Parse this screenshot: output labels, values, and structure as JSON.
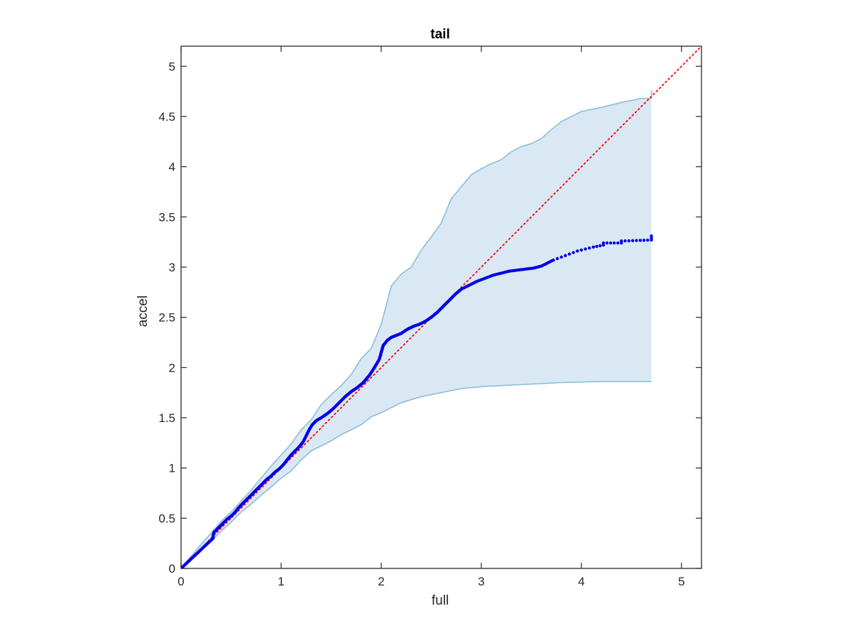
{
  "chart_data": {
    "type": "scatter",
    "title": "tail",
    "xlabel": "full",
    "ylabel": "accel",
    "xlim": [
      0,
      5.2
    ],
    "ylim": [
      0,
      5.2
    ],
    "xticks": [
      "0",
      "1",
      "2",
      "3",
      "4",
      "5"
    ],
    "yticks": [
      "0",
      "0.5",
      "1",
      "1.5",
      "2",
      "2.5",
      "3",
      "3.5",
      "4",
      "4.5",
      "5"
    ],
    "grid": false,
    "box": true,
    "colors": {
      "points": "#0000e6",
      "band_fill": "#d9e8f3",
      "band_edge": "#8dbddb",
      "reference_line": "#ff0000"
    },
    "reference_line": {
      "style": "dotted",
      "from": [
        0,
        0
      ],
      "to": [
        5.2,
        5.2
      ]
    },
    "band": {
      "upper": [
        [
          0,
          0
        ],
        [
          0.1,
          0.12
        ],
        [
          0.2,
          0.24
        ],
        [
          0.3,
          0.35
        ],
        [
          0.4,
          0.47
        ],
        [
          0.5,
          0.56
        ],
        [
          0.6,
          0.67
        ],
        [
          0.7,
          0.78
        ],
        [
          0.8,
          0.9
        ],
        [
          0.9,
          1.02
        ],
        [
          1.0,
          1.13
        ],
        [
          1.1,
          1.24
        ],
        [
          1.2,
          1.38
        ],
        [
          1.3,
          1.48
        ],
        [
          1.4,
          1.63
        ],
        [
          1.5,
          1.73
        ],
        [
          1.6,
          1.82
        ],
        [
          1.7,
          1.93
        ],
        [
          1.8,
          2.09
        ],
        [
          1.9,
          2.19
        ],
        [
          2.0,
          2.43
        ],
        [
          2.05,
          2.62
        ],
        [
          2.1,
          2.81
        ],
        [
          2.2,
          2.93
        ],
        [
          2.3,
          3.0
        ],
        [
          2.4,
          3.17
        ],
        [
          2.5,
          3.3
        ],
        [
          2.6,
          3.44
        ],
        [
          2.7,
          3.68
        ],
        [
          2.8,
          3.8
        ],
        [
          2.9,
          3.92
        ],
        [
          3.0,
          3.98
        ],
        [
          3.1,
          4.03
        ],
        [
          3.2,
          4.07
        ],
        [
          3.3,
          4.15
        ],
        [
          3.4,
          4.2
        ],
        [
          3.5,
          4.23
        ],
        [
          3.6,
          4.28
        ],
        [
          3.7,
          4.37
        ],
        [
          3.8,
          4.45
        ],
        [
          3.9,
          4.5
        ],
        [
          4.0,
          4.55
        ],
        [
          4.2,
          4.59
        ],
        [
          4.4,
          4.64
        ],
        [
          4.6,
          4.68
        ],
        [
          4.7,
          4.68
        ],
        [
          4.7,
          4.76
        ]
      ],
      "lower": [
        [
          0,
          0
        ],
        [
          0.3,
          0.27
        ],
        [
          0.4,
          0.37
        ],
        [
          0.5,
          0.46
        ],
        [
          0.6,
          0.56
        ],
        [
          0.7,
          0.64
        ],
        [
          0.8,
          0.73
        ],
        [
          0.9,
          0.81
        ],
        [
          1.0,
          0.9
        ],
        [
          1.1,
          0.97
        ],
        [
          1.2,
          1.08
        ],
        [
          1.3,
          1.17
        ],
        [
          1.4,
          1.22
        ],
        [
          1.5,
          1.27
        ],
        [
          1.6,
          1.33
        ],
        [
          1.7,
          1.38
        ],
        [
          1.8,
          1.43
        ],
        [
          1.9,
          1.51
        ],
        [
          2.0,
          1.55
        ],
        [
          2.1,
          1.6
        ],
        [
          2.2,
          1.65
        ],
        [
          2.4,
          1.71
        ],
        [
          2.6,
          1.75
        ],
        [
          2.8,
          1.79
        ],
        [
          3.0,
          1.81
        ],
        [
          3.4,
          1.83
        ],
        [
          3.8,
          1.85
        ],
        [
          4.2,
          1.86
        ],
        [
          4.7,
          1.86
        ]
      ]
    },
    "points": [
      [
        0,
        0
      ],
      [
        0.32,
        0.3
      ],
      [
        0.32,
        0.33
      ],
      [
        0.33,
        0.36
      ],
      [
        0.35,
        0.38
      ],
      [
        0.38,
        0.41
      ],
      [
        0.42,
        0.45
      ],
      [
        0.46,
        0.49
      ],
      [
        0.5,
        0.52
      ],
      [
        0.54,
        0.56
      ],
      [
        0.58,
        0.61
      ],
      [
        0.62,
        0.65
      ],
      [
        0.66,
        0.69
      ],
      [
        0.7,
        0.73
      ],
      [
        0.74,
        0.77
      ],
      [
        0.78,
        0.81
      ],
      [
        0.82,
        0.85
      ],
      [
        0.86,
        0.89
      ],
      [
        0.9,
        0.92
      ],
      [
        0.94,
        0.96
      ],
      [
        0.98,
        0.99
      ],
      [
        1.02,
        1.03
      ],
      [
        1.06,
        1.08
      ],
      [
        1.1,
        1.13
      ],
      [
        1.14,
        1.17
      ],
      [
        1.18,
        1.21
      ],
      [
        1.22,
        1.26
      ],
      [
        1.25,
        1.32
      ],
      [
        1.28,
        1.38
      ],
      [
        1.31,
        1.43
      ],
      [
        1.35,
        1.47
      ],
      [
        1.4,
        1.5
      ],
      [
        1.46,
        1.54
      ],
      [
        1.52,
        1.59
      ],
      [
        1.58,
        1.65
      ],
      [
        1.64,
        1.71
      ],
      [
        1.7,
        1.76
      ],
      [
        1.76,
        1.8
      ],
      [
        1.82,
        1.85
      ],
      [
        1.88,
        1.92
      ],
      [
        1.92,
        1.98
      ],
      [
        1.95,
        2.03
      ],
      [
        1.98,
        2.08
      ],
      [
        2.0,
        2.15
      ],
      [
        2.02,
        2.22
      ],
      [
        2.06,
        2.27
      ],
      [
        2.1,
        2.3
      ],
      [
        2.15,
        2.32
      ],
      [
        2.2,
        2.34
      ],
      [
        2.26,
        2.38
      ],
      [
        2.32,
        2.41
      ],
      [
        2.38,
        2.43
      ],
      [
        2.44,
        2.46
      ],
      [
        2.5,
        2.5
      ],
      [
        2.56,
        2.55
      ],
      [
        2.62,
        2.61
      ],
      [
        2.68,
        2.67
      ],
      [
        2.74,
        2.73
      ],
      [
        2.8,
        2.78
      ],
      [
        2.88,
        2.82
      ],
      [
        2.96,
        2.86
      ],
      [
        3.04,
        2.89
      ],
      [
        3.12,
        2.92
      ],
      [
        3.2,
        2.94
      ],
      [
        3.28,
        2.96
      ],
      [
        3.36,
        2.97
      ],
      [
        3.44,
        2.98
      ],
      [
        3.52,
        2.99
      ],
      [
        3.6,
        3.01
      ],
      [
        3.66,
        3.04
      ],
      [
        3.72,
        3.07
      ],
      [
        3.8,
        3.1
      ],
      [
        3.88,
        3.13
      ],
      [
        3.96,
        3.16
      ],
      [
        4.04,
        3.18
      ],
      [
        4.12,
        3.2
      ],
      [
        4.22,
        3.22
      ],
      [
        4.22,
        3.24
      ],
      [
        4.4,
        3.24
      ],
      [
        4.4,
        3.26
      ],
      [
        4.7,
        3.27
      ],
      [
        4.7,
        3.29
      ],
      [
        4.7,
        3.31
      ]
    ]
  }
}
